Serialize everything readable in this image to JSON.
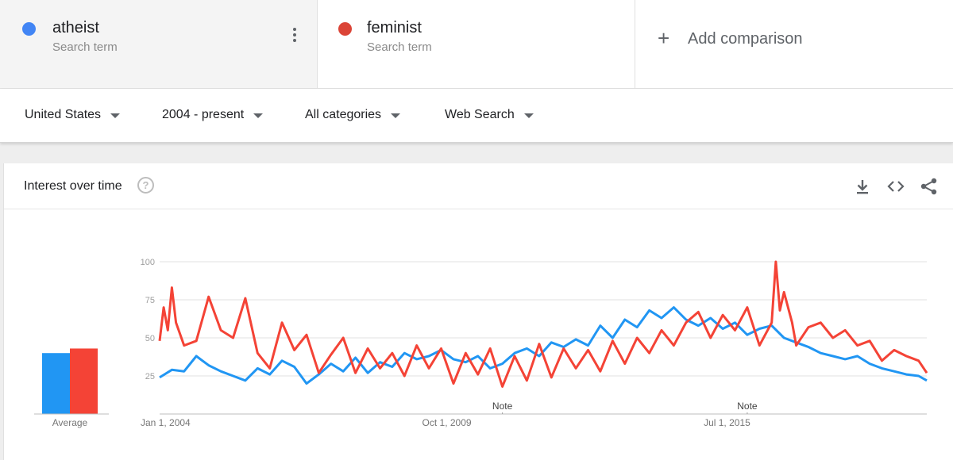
{
  "terms": [
    {
      "name": "atheist",
      "sub": "Search term",
      "color": "#4285f4"
    },
    {
      "name": "feminist",
      "sub": "Search term",
      "color": "#db4437"
    }
  ],
  "add_comparison": {
    "icon": "plus-icon",
    "label": "Add comparison"
  },
  "filters": [
    {
      "label": "United States"
    },
    {
      "label": "2004 - present"
    },
    {
      "label": "All categories"
    },
    {
      "label": "Web Search"
    }
  ],
  "card": {
    "title": "Interest over time",
    "help_icon": "?",
    "icons": [
      "download-icon",
      "embed-code-icon",
      "share-icon"
    ]
  },
  "chart_data": {
    "type": "line",
    "title": "Interest over time",
    "xlabel": "",
    "ylabel": "",
    "ylim": [
      0,
      100
    ],
    "yticks": [
      25,
      50,
      75,
      100
    ],
    "grid": true,
    "x_start": "2004-01",
    "x_end": "2019-09",
    "xtick_labels": [
      {
        "label": "Jan 1, 2004",
        "date": "2004-01"
      },
      {
        "label": "Oct 1, 2009",
        "date": "2009-10"
      },
      {
        "label": "Jul 1, 2015",
        "date": "2015-07"
      }
    ],
    "notes": [
      {
        "label": "Note",
        "date": "2011-01"
      },
      {
        "label": "Note",
        "date": "2016-01"
      }
    ],
    "averages": {
      "label": "Average",
      "values": [
        40,
        43
      ]
    },
    "series": [
      {
        "name": "atheist",
        "color": "#2196f3",
        "points": [
          [
            "2004-01",
            24
          ],
          [
            "2004-04",
            29
          ],
          [
            "2004-07",
            28
          ],
          [
            "2004-10",
            38
          ],
          [
            "2005-01",
            32
          ],
          [
            "2005-04",
            28
          ],
          [
            "2005-07",
            25
          ],
          [
            "2005-10",
            22
          ],
          [
            "2006-01",
            30
          ],
          [
            "2006-04",
            26
          ],
          [
            "2006-07",
            35
          ],
          [
            "2006-10",
            31
          ],
          [
            "2007-01",
            20
          ],
          [
            "2007-04",
            26
          ],
          [
            "2007-07",
            33
          ],
          [
            "2007-10",
            28
          ],
          [
            "2008-01",
            37
          ],
          [
            "2008-04",
            27
          ],
          [
            "2008-07",
            34
          ],
          [
            "2008-10",
            31
          ],
          [
            "2009-01",
            40
          ],
          [
            "2009-04",
            36
          ],
          [
            "2009-07",
            38
          ],
          [
            "2009-10",
            42
          ],
          [
            "2010-01",
            36
          ],
          [
            "2010-04",
            34
          ],
          [
            "2010-07",
            38
          ],
          [
            "2010-10",
            30
          ],
          [
            "2011-01",
            33
          ],
          [
            "2011-04",
            40
          ],
          [
            "2011-07",
            43
          ],
          [
            "2011-10",
            38
          ],
          [
            "2012-01",
            47
          ],
          [
            "2012-04",
            44
          ],
          [
            "2012-07",
            49
          ],
          [
            "2012-10",
            45
          ],
          [
            "2013-01",
            58
          ],
          [
            "2013-04",
            50
          ],
          [
            "2013-07",
            62
          ],
          [
            "2013-10",
            57
          ],
          [
            "2014-01",
            68
          ],
          [
            "2014-04",
            63
          ],
          [
            "2014-07",
            70
          ],
          [
            "2014-10",
            62
          ],
          [
            "2015-01",
            58
          ],
          [
            "2015-04",
            63
          ],
          [
            "2015-07",
            56
          ],
          [
            "2015-10",
            60
          ],
          [
            "2016-01",
            52
          ],
          [
            "2016-04",
            56
          ],
          [
            "2016-07",
            58
          ],
          [
            "2016-10",
            50
          ],
          [
            "2017-01",
            47
          ],
          [
            "2017-04",
            44
          ],
          [
            "2017-07",
            40
          ],
          [
            "2017-10",
            38
          ],
          [
            "2018-01",
            36
          ],
          [
            "2018-04",
            38
          ],
          [
            "2018-07",
            33
          ],
          [
            "2018-10",
            30
          ],
          [
            "2019-01",
            28
          ],
          [
            "2019-04",
            26
          ],
          [
            "2019-07",
            25
          ],
          [
            "2019-09",
            22
          ]
        ]
      },
      {
        "name": "feminist",
        "color": "#f44336",
        "points": [
          [
            "2004-01",
            48
          ],
          [
            "2004-02",
            70
          ],
          [
            "2004-03",
            55
          ],
          [
            "2004-04",
            83
          ],
          [
            "2004-05",
            60
          ],
          [
            "2004-07",
            45
          ],
          [
            "2004-10",
            48
          ],
          [
            "2005-01",
            77
          ],
          [
            "2005-04",
            55
          ],
          [
            "2005-07",
            50
          ],
          [
            "2005-10",
            76
          ],
          [
            "2006-01",
            40
          ],
          [
            "2006-04",
            30
          ],
          [
            "2006-07",
            60
          ],
          [
            "2006-10",
            42
          ],
          [
            "2007-01",
            52
          ],
          [
            "2007-04",
            27
          ],
          [
            "2007-07",
            39
          ],
          [
            "2007-10",
            50
          ],
          [
            "2008-01",
            27
          ],
          [
            "2008-04",
            43
          ],
          [
            "2008-07",
            30
          ],
          [
            "2008-10",
            40
          ],
          [
            "2009-01",
            25
          ],
          [
            "2009-04",
            45
          ],
          [
            "2009-07",
            30
          ],
          [
            "2009-10",
            43
          ],
          [
            "2010-01",
            20
          ],
          [
            "2010-04",
            40
          ],
          [
            "2010-07",
            26
          ],
          [
            "2010-10",
            43
          ],
          [
            "2011-01",
            18
          ],
          [
            "2011-04",
            38
          ],
          [
            "2011-07",
            22
          ],
          [
            "2011-10",
            46
          ],
          [
            "2012-01",
            24
          ],
          [
            "2012-04",
            43
          ],
          [
            "2012-07",
            30
          ],
          [
            "2012-10",
            42
          ],
          [
            "2013-01",
            28
          ],
          [
            "2013-04",
            48
          ],
          [
            "2013-07",
            33
          ],
          [
            "2013-10",
            50
          ],
          [
            "2014-01",
            40
          ],
          [
            "2014-04",
            55
          ],
          [
            "2014-07",
            45
          ],
          [
            "2014-10",
            60
          ],
          [
            "2015-01",
            67
          ],
          [
            "2015-04",
            50
          ],
          [
            "2015-07",
            65
          ],
          [
            "2015-10",
            55
          ],
          [
            "2016-01",
            70
          ],
          [
            "2016-04",
            45
          ],
          [
            "2016-07",
            60
          ],
          [
            "2016-08",
            100
          ],
          [
            "2016-09",
            68
          ],
          [
            "2016-10",
            80
          ],
          [
            "2016-12",
            60
          ],
          [
            "2017-01",
            45
          ],
          [
            "2017-04",
            57
          ],
          [
            "2017-07",
            60
          ],
          [
            "2017-10",
            50
          ],
          [
            "2018-01",
            55
          ],
          [
            "2018-04",
            45
          ],
          [
            "2018-07",
            48
          ],
          [
            "2018-10",
            35
          ],
          [
            "2019-01",
            42
          ],
          [
            "2019-04",
            38
          ],
          [
            "2019-07",
            35
          ],
          [
            "2019-09",
            27
          ]
        ]
      }
    ]
  }
}
